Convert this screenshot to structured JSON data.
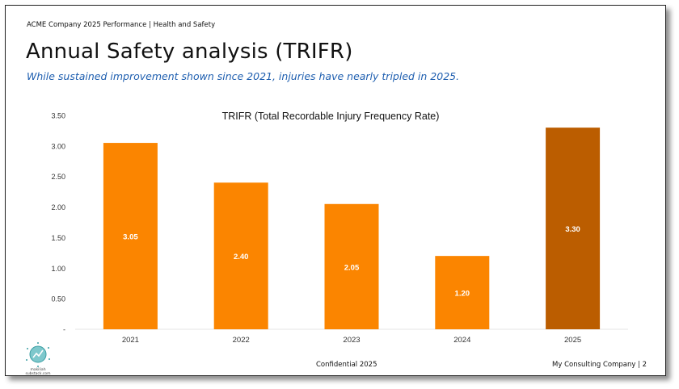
{
  "header": {
    "breadcrumb": "ACME Company 2025 Performance | Health and Safety",
    "title": "Annual Safety analysis (TRIFR)",
    "subtitle": "While sustained improvement shown since 2021, injuries have nearly tripled in 2025."
  },
  "logo": {
    "icon": "globe-chart-icon",
    "text_line1": "makiliah",
    "text_line2": "substack.com"
  },
  "footer": {
    "center": "Confidential 2025",
    "right": "My Consulting Company | 2"
  },
  "chart_data": {
    "type": "bar",
    "title": "TRIFR (Total Recordable Injury Frequency Rate)",
    "categories": [
      "2021",
      "2022",
      "2023",
      "2024",
      "2025"
    ],
    "values": [
      3.05,
      2.4,
      2.05,
      1.2,
      3.3
    ],
    "data_labels": [
      "3.05",
      "2.40",
      "2.05",
      "1.20",
      "3.30"
    ],
    "y_ticks": [
      "-",
      "0.50",
      "1.00",
      "1.50",
      "2.00",
      "2.50",
      "3.00",
      "3.50"
    ],
    "ylim": [
      0,
      3.5
    ],
    "grid": false,
    "legend": "none",
    "colors": {
      "bar": "#fb8500",
      "highlight": "#bb5d00",
      "label": "#ffffff",
      "axis_text": "#333333"
    },
    "highlight_index": 4
  }
}
